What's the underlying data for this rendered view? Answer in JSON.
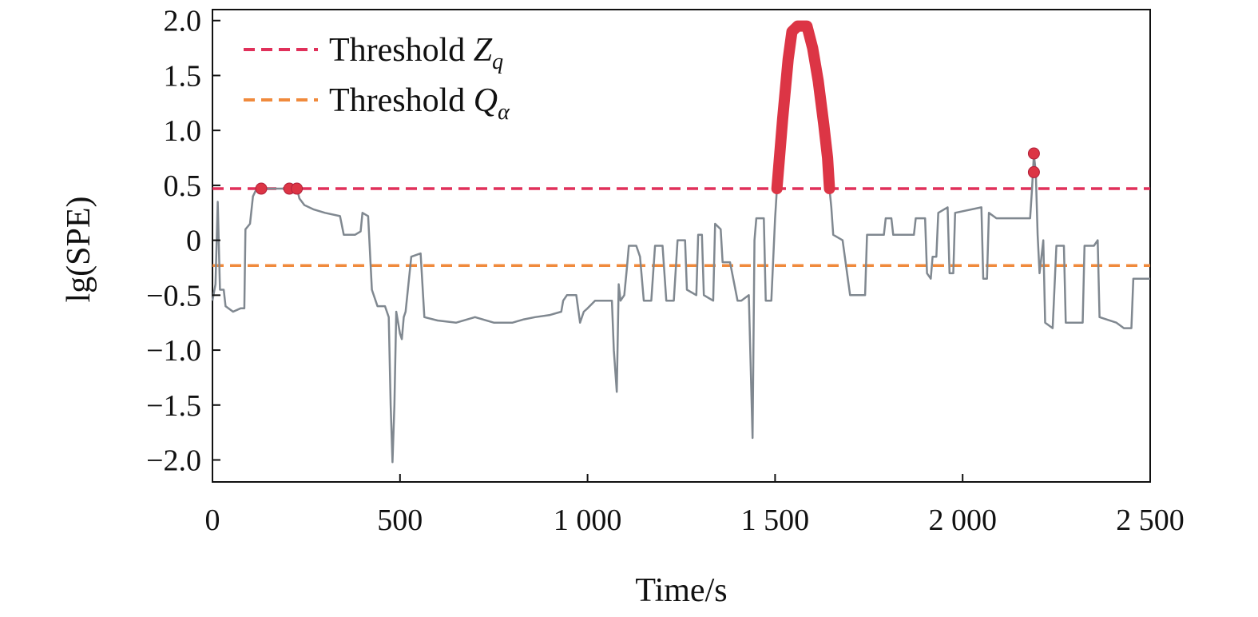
{
  "chart_data": {
    "type": "line",
    "title": "",
    "xlabel": "Time/s",
    "ylabel": "lg(SPE)",
    "xlim": [
      0,
      2500
    ],
    "ylim": [
      -2.2,
      2.1
    ],
    "x_ticks": [
      0,
      500,
      1000,
      1500,
      2000,
      2500
    ],
    "x_tick_labels": [
      "0",
      "500",
      "1 000",
      "1 500",
      "2 000",
      "2 500"
    ],
    "y_ticks": [
      2.0,
      1.5,
      1.0,
      0.5,
      0,
      -0.5,
      -1.0,
      -1.5,
      -2.0
    ],
    "y_tick_labels": [
      "2.0",
      "1.5",
      "1.0",
      "0.5",
      "0",
      "−0.5",
      "−1.0",
      "−1.5",
      "−2.0"
    ],
    "grid": false,
    "legend": {
      "placement": "top-left",
      "entries": [
        {
          "text": "Threshold ",
          "symbol": "Z",
          "subscript": "q",
          "color": "#e0305a"
        },
        {
          "text": "Threshold ",
          "symbol": "Q",
          "subscript": "α",
          "color": "#f08a3c"
        }
      ]
    },
    "thresholds": [
      {
        "name": "Threshold Zq",
        "value": 0.47,
        "color": "#e0305a"
      },
      {
        "name": "Threshold Qα",
        "value": -0.23,
        "color": "#f08a3c"
      }
    ],
    "series": [
      {
        "color": "#808890",
        "points": [
          [
            0,
            -0.55
          ],
          [
            8,
            -0.4
          ],
          [
            14,
            0.35
          ],
          [
            20,
            -0.45
          ],
          [
            30,
            -0.45
          ],
          [
            35,
            -0.6
          ],
          [
            55,
            -0.65
          ],
          [
            75,
            -0.62
          ],
          [
            85,
            -0.62
          ],
          [
            88,
            0.1
          ],
          [
            100,
            0.15
          ],
          [
            108,
            0.4
          ],
          [
            115,
            0.45
          ],
          [
            140,
            0.47
          ],
          [
            200,
            0.47
          ],
          [
            225,
            0.47
          ],
          [
            232,
            0.38
          ],
          [
            245,
            0.32
          ],
          [
            270,
            0.28
          ],
          [
            300,
            0.25
          ],
          [
            340,
            0.22
          ],
          [
            350,
            0.05
          ],
          [
            380,
            0.05
          ],
          [
            395,
            0.08
          ],
          [
            400,
            0.25
          ],
          [
            415,
            0.22
          ],
          [
            425,
            -0.45
          ],
          [
            440,
            -0.6
          ],
          [
            460,
            -0.6
          ],
          [
            470,
            -0.7
          ],
          [
            475,
            -1.5
          ],
          [
            480,
            -2.02
          ],
          [
            485,
            -1.5
          ],
          [
            490,
            -0.65
          ],
          [
            500,
            -0.85
          ],
          [
            505,
            -0.9
          ],
          [
            510,
            -0.7
          ],
          [
            515,
            -0.65
          ],
          [
            530,
            -0.15
          ],
          [
            555,
            -0.12
          ],
          [
            565,
            -0.7
          ],
          [
            600,
            -0.73
          ],
          [
            650,
            -0.75
          ],
          [
            700,
            -0.7
          ],
          [
            750,
            -0.75
          ],
          [
            800,
            -0.75
          ],
          [
            830,
            -0.72
          ],
          [
            860,
            -0.7
          ],
          [
            900,
            -0.68
          ],
          [
            930,
            -0.65
          ],
          [
            935,
            -0.55
          ],
          [
            945,
            -0.5
          ],
          [
            970,
            -0.5
          ],
          [
            980,
            -0.75
          ],
          [
            990,
            -0.65
          ],
          [
            1000,
            -0.62
          ],
          [
            1020,
            -0.55
          ],
          [
            1050,
            -0.55
          ],
          [
            1065,
            -0.55
          ],
          [
            1070,
            -1.0
          ],
          [
            1078,
            -1.38
          ],
          [
            1083,
            -0.4
          ],
          [
            1088,
            -0.55
          ],
          [
            1098,
            -0.5
          ],
          [
            1105,
            -0.25
          ],
          [
            1110,
            -0.05
          ],
          [
            1130,
            -0.05
          ],
          [
            1140,
            -0.15
          ],
          [
            1150,
            -0.55
          ],
          [
            1170,
            -0.55
          ],
          [
            1180,
            -0.05
          ],
          [
            1200,
            -0.05
          ],
          [
            1210,
            -0.55
          ],
          [
            1230,
            -0.55
          ],
          [
            1240,
            0.0
          ],
          [
            1260,
            0.0
          ],
          [
            1265,
            -0.45
          ],
          [
            1290,
            -0.5
          ],
          [
            1295,
            0.05
          ],
          [
            1305,
            0.05
          ],
          [
            1310,
            -0.5
          ],
          [
            1335,
            -0.55
          ],
          [
            1340,
            0.15
          ],
          [
            1355,
            0.1
          ],
          [
            1360,
            -0.2
          ],
          [
            1380,
            -0.2
          ],
          [
            1400,
            -0.55
          ],
          [
            1410,
            -0.55
          ],
          [
            1430,
            -0.5
          ],
          [
            1440,
            -1.8
          ],
          [
            1445,
            0.0
          ],
          [
            1450,
            0.2
          ],
          [
            1470,
            0.2
          ],
          [
            1475,
            -0.55
          ],
          [
            1490,
            -0.55
          ],
          [
            1500,
            0.2
          ],
          [
            1505,
            0.47
          ],
          [
            1520,
            1.1
          ],
          [
            1535,
            1.65
          ],
          [
            1545,
            1.9
          ],
          [
            1560,
            1.95
          ],
          [
            1585,
            1.95
          ],
          [
            1600,
            1.75
          ],
          [
            1615,
            1.45
          ],
          [
            1630,
            1.05
          ],
          [
            1640,
            0.75
          ],
          [
            1645,
            0.47
          ],
          [
            1650,
            0.3
          ],
          [
            1655,
            0.05
          ],
          [
            1680,
            0.0
          ],
          [
            1700,
            -0.5
          ],
          [
            1740,
            -0.5
          ],
          [
            1745,
            0.05
          ],
          [
            1790,
            0.05
          ],
          [
            1795,
            0.2
          ],
          [
            1810,
            0.2
          ],
          [
            1815,
            0.05
          ],
          [
            1870,
            0.05
          ],
          [
            1875,
            0.2
          ],
          [
            1900,
            0.2
          ],
          [
            1905,
            -0.3
          ],
          [
            1915,
            -0.35
          ],
          [
            1920,
            -0.15
          ],
          [
            1930,
            -0.15
          ],
          [
            1935,
            0.25
          ],
          [
            1960,
            0.3
          ],
          [
            1965,
            -0.3
          ],
          [
            1975,
            -0.3
          ],
          [
            1980,
            0.25
          ],
          [
            2050,
            0.3
          ],
          [
            2055,
            -0.35
          ],
          [
            2065,
            -0.35
          ],
          [
            2070,
            0.25
          ],
          [
            2090,
            0.2
          ],
          [
            2180,
            0.2
          ],
          [
            2185,
            0.47
          ],
          [
            2190,
            0.78
          ],
          [
            2195,
            0.62
          ],
          [
            2200,
            0.05
          ],
          [
            2205,
            -0.3
          ],
          [
            2215,
            0.0
          ],
          [
            2220,
            -0.75
          ],
          [
            2240,
            -0.8
          ],
          [
            2250,
            -0.05
          ],
          [
            2270,
            -0.05
          ],
          [
            2275,
            -0.75
          ],
          [
            2320,
            -0.75
          ],
          [
            2325,
            -0.05
          ],
          [
            2350,
            -0.05
          ],
          [
            2360,
            0.0
          ],
          [
            2365,
            -0.7
          ],
          [
            2410,
            -0.75
          ],
          [
            2430,
            -0.8
          ],
          [
            2450,
            -0.8
          ],
          [
            2455,
            -0.35
          ],
          [
            2500,
            -0.35
          ]
        ]
      }
    ],
    "anomaly_points": [
      [
        130,
        0.47
      ],
      [
        205,
        0.47
      ],
      [
        225,
        0.47
      ],
      [
        2190,
        0.79
      ],
      [
        2190,
        0.62
      ]
    ],
    "highlight_color": "#dc3545"
  }
}
